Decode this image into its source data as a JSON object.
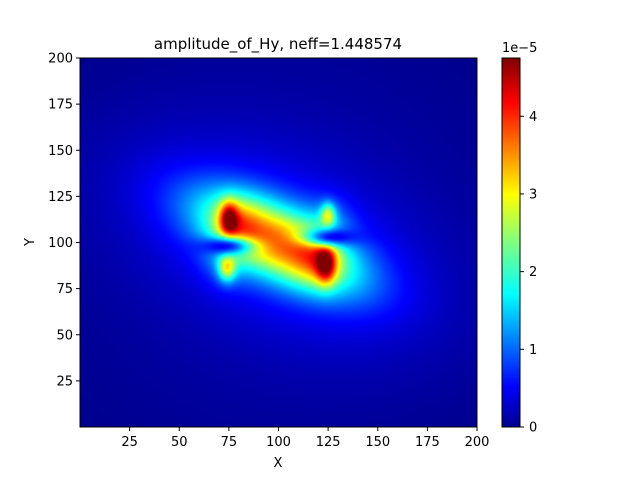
{
  "chart_data": {
    "type": "heatmap",
    "title": "amplitude_of_Hy, neff=1.448574",
    "xlabel": "X",
    "ylabel": "Y",
    "xlim": [
      0,
      200
    ],
    "ylim": [
      0,
      200
    ],
    "x_ticks": [
      25,
      50,
      75,
      100,
      125,
      150,
      175,
      200
    ],
    "y_ticks": [
      25,
      50,
      75,
      100,
      125,
      150,
      175,
      200
    ],
    "colormap": "jet",
    "colorbar": {
      "min": 0,
      "max": 4.75,
      "ticks": [
        0,
        1,
        2,
        3,
        4
      ],
      "offset_label": "1e−5"
    },
    "field_features": {
      "hotspots": [
        {
          "x": 75,
          "y": 113,
          "value": 4.7
        },
        {
          "x": 124,
          "y": 88,
          "value": 4.7
        }
      ],
      "minor_lobes": [
        {
          "x": 74,
          "y": 86,
          "value": 2.2
        },
        {
          "x": 125,
          "y": 115,
          "value": 2.0
        }
      ],
      "core_direction": "diagonal from upper-left to lower-right"
    }
  }
}
